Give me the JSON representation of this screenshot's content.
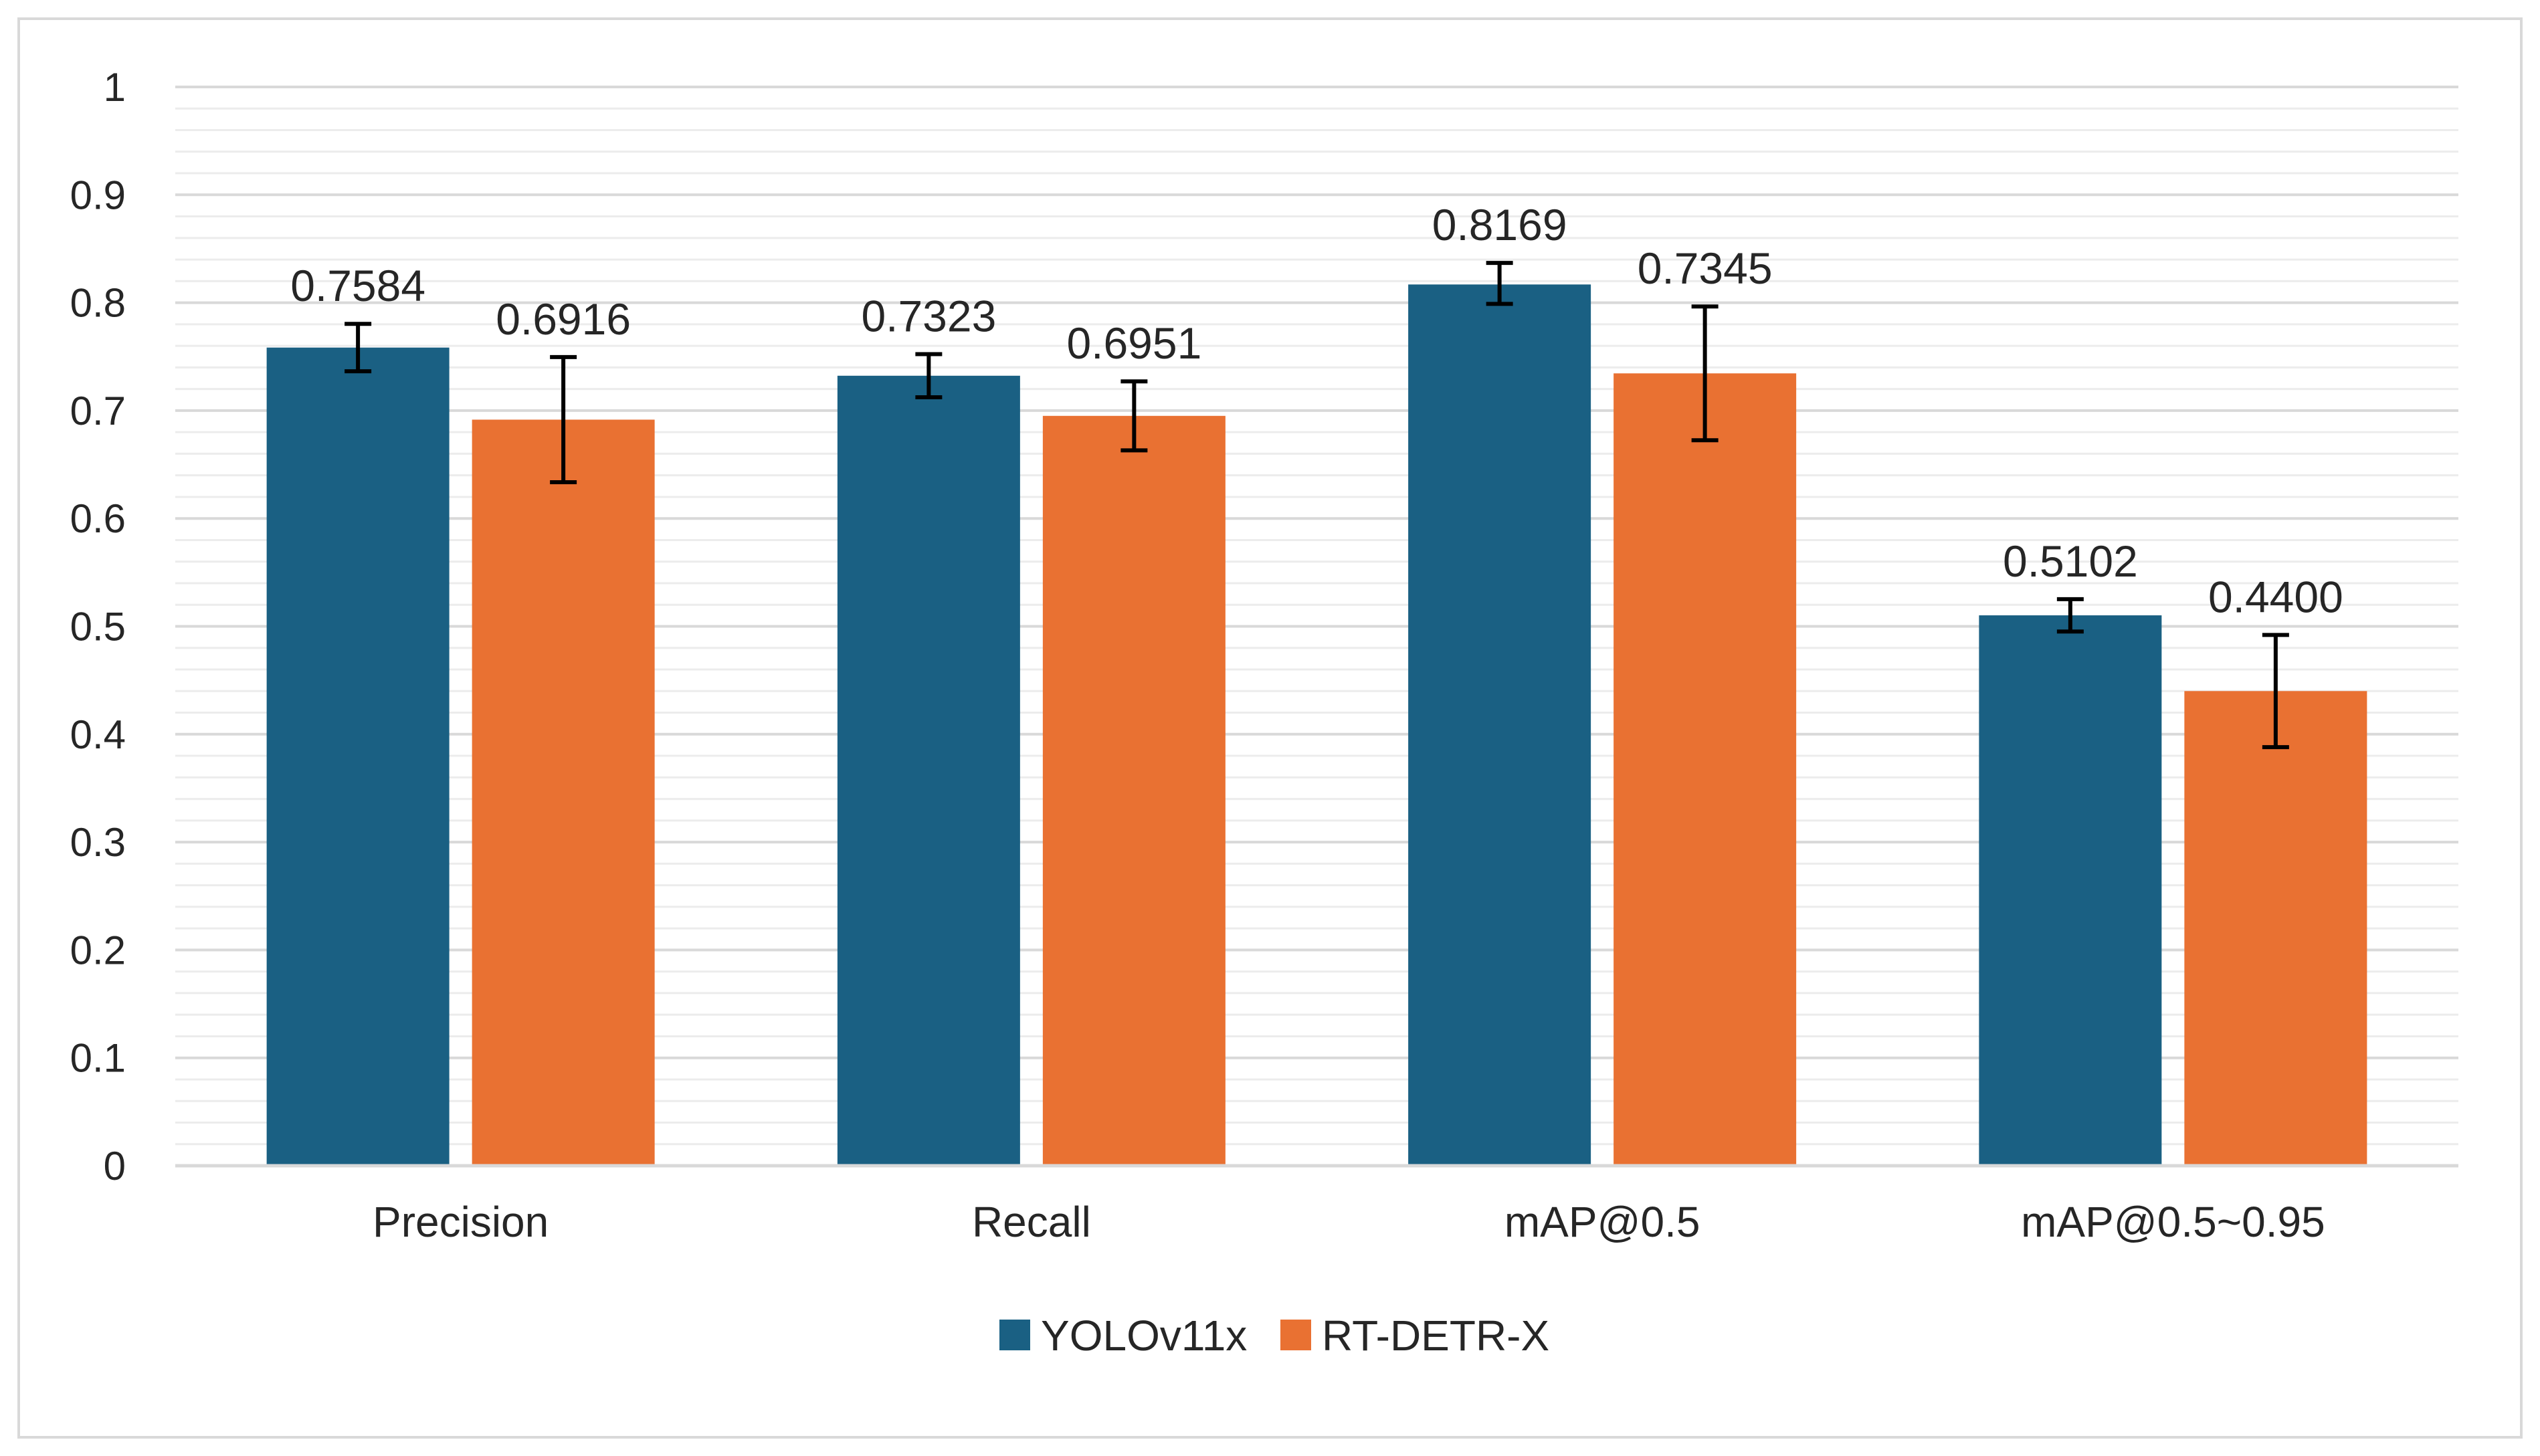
{
  "chart_data": {
    "type": "bar",
    "title": "",
    "xlabel": "",
    "ylabel": "",
    "ylim": [
      0,
      1
    ],
    "yticks": [
      "0",
      "0.1",
      "0.2",
      "0.3",
      "0.4",
      "0.5",
      "0.6",
      "0.7",
      "0.8",
      "0.9",
      "1"
    ],
    "categories": [
      "Precision",
      "Recall",
      "mAP@0.5",
      "mAP@0.5~0.95"
    ],
    "series": [
      {
        "name": "YOLOv11x",
        "color": "#1a6083",
        "values": [
          0.7584,
          0.7323,
          0.8169,
          0.5102
        ],
        "labels": [
          "0.7584",
          "0.7323",
          "0.8169",
          "0.5102"
        ],
        "error_low": [
          0.022,
          0.02,
          0.018,
          0.015
        ],
        "error_high": [
          0.022,
          0.02,
          0.02,
          0.015
        ]
      },
      {
        "name": "RT-DETR-X",
        "color": "#e97132",
        "values": [
          0.6916,
          0.6951,
          0.7345,
          0.44
        ],
        "labels": [
          "0.6916",
          "0.6951",
          "0.7345",
          "0.4400"
        ],
        "error_low": [
          0.058,
          0.032,
          0.062,
          0.052
        ],
        "error_high": [
          0.058,
          0.032,
          0.062,
          0.052
        ]
      }
    ],
    "grid": true,
    "minor_grid": true,
    "legend_position": "bottom-center"
  }
}
